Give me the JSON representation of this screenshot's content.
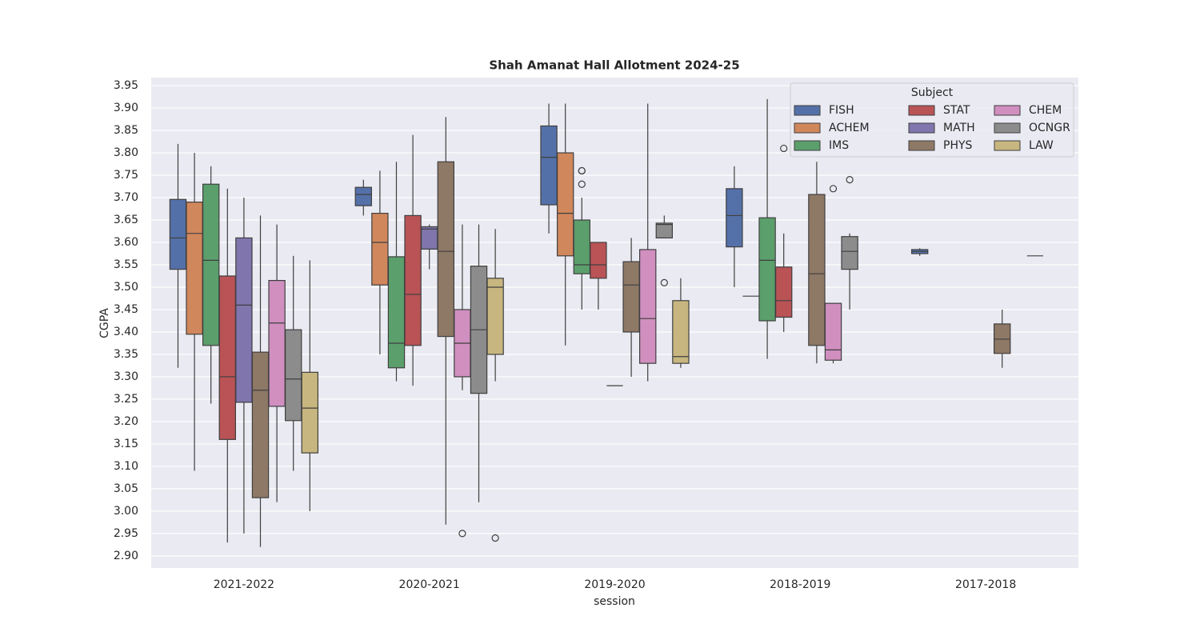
{
  "chart_data": {
    "type": "box",
    "title": "Shah Amanat Hall Allotment 2024-25",
    "x_label": "session",
    "y_label": "CGPA",
    "legend_title": "Subject",
    "legend": "upper right",
    "grid": true,
    "categories": [
      "2021-2022",
      "2020-2021",
      "2019-2020",
      "2018-2019",
      "2017-2018"
    ],
    "ylim": [
      2.873,
      3.968
    ],
    "yticks": [
      {
        "value": 2.9,
        "label": "2.90"
      },
      2.95,
      {
        "value": 3,
        "label": "3.00"
      },
      3.05,
      {
        "value": 3.1,
        "label": "3.10"
      },
      3.15,
      {
        "value": 3.2,
        "label": "3.20"
      },
      3.25,
      {
        "value": 3.3,
        "label": "3.30"
      },
      3.35,
      {
        "value": 3.4,
        "label": "3.40"
      },
      3.45,
      {
        "value": 3.5,
        "label": "3.50"
      },
      3.55,
      {
        "value": 3.6,
        "label": "3.60"
      },
      3.65,
      {
        "value": 3.7,
        "label": "3.70"
      },
      3.75,
      {
        "value": 3.8,
        "label": "3.80"
      },
      3.85,
      {
        "value": 3.9,
        "label": "3.90"
      },
      3.95
    ],
    "series": [
      {
        "name": "FISH",
        "color": "#5470a8",
        "boxes": [
          {
            "whislo": 3.32,
            "q1": 3.54,
            "med": 3.61,
            "q3": 3.696,
            "whishi": 3.82
          },
          {
            "whislo": 3.66,
            "q1": 3.682,
            "med": 3.707,
            "q3": 3.723,
            "whishi": 3.74
          },
          {
            "whislo": 3.62,
            "q1": 3.684,
            "med": 3.79,
            "q3": 3.86,
            "whishi": 3.91
          },
          {
            "whislo": 3.5,
            "q1": 3.59,
            "med": 3.66,
            "q3": 3.72,
            "whishi": 3.77
          },
          {
            "whislo": 3.57,
            "q1": 3.575,
            "med": 3.58,
            "q3": 3.584,
            "whishi": 3.587
          }
        ]
      },
      {
        "name": "ACHEM",
        "color": "#d0875c",
        "boxes": [
          {
            "whislo": 3.09,
            "q1": 3.395,
            "med": 3.62,
            "q3": 3.69,
            "whishi": 3.8
          },
          {
            "whislo": 3.35,
            "q1": 3.505,
            "med": 3.6,
            "q3": 3.665,
            "whishi": 3.76
          },
          {
            "whislo": 3.37,
            "q1": 3.57,
            "med": 3.665,
            "q3": 3.8,
            "whishi": 3.91
          },
          {
            "whislo": 3.48,
            "q1": 3.48,
            "med": 3.48,
            "q3": 3.48,
            "whishi": 3.48
          },
          null
        ]
      },
      {
        "name": "IMS",
        "color": "#5b9f6c",
        "boxes": [
          {
            "whislo": 3.24,
            "q1": 3.37,
            "med": 3.56,
            "q3": 3.73,
            "whishi": 3.77
          },
          {
            "whislo": 3.29,
            "q1": 3.32,
            "med": 3.375,
            "q3": 3.568,
            "whishi": 3.78
          },
          {
            "whislo": 3.45,
            "q1": 3.53,
            "med": 3.55,
            "q3": 3.65,
            "whishi": 3.7,
            "fliers": [
              3.76,
              3.76,
              3.73
            ]
          },
          {
            "whislo": 3.34,
            "q1": 3.425,
            "med": 3.56,
            "q3": 3.655,
            "whishi": 3.92
          },
          null
        ]
      },
      {
        "name": "STAT",
        "color": "#b95356",
        "boxes": [
          {
            "whislo": 2.93,
            "q1": 3.16,
            "med": 3.3,
            "q3": 3.525,
            "whishi": 3.72
          },
          {
            "whislo": 3.28,
            "q1": 3.37,
            "med": 3.484,
            "q3": 3.66,
            "whishi": 3.84
          },
          {
            "whislo": 3.45,
            "q1": 3.52,
            "med": 3.55,
            "q3": 3.6,
            "whishi": 3.6
          },
          {
            "whislo": 3.4,
            "q1": 3.433,
            "med": 3.47,
            "q3": 3.545,
            "whishi": 3.62,
            "fliers": [
              3.81
            ]
          },
          null
        ]
      },
      {
        "name": "MATH",
        "color": "#8175ad",
        "boxes": [
          {
            "whislo": 2.95,
            "q1": 3.243,
            "med": 3.46,
            "q3": 3.61,
            "whishi": 3.7
          },
          {
            "whislo": 3.54,
            "q1": 3.585,
            "med": 3.63,
            "q3": 3.635,
            "whishi": 3.64
          },
          {
            "whislo": 3.28,
            "q1": 3.28,
            "med": 3.28,
            "q3": 3.28,
            "whishi": 3.28
          },
          null,
          null
        ]
      },
      {
        "name": "PHYS",
        "color": "#8e7866",
        "boxes": [
          {
            "whislo": 2.92,
            "q1": 3.03,
            "med": 3.27,
            "q3": 3.355,
            "whishi": 3.66
          },
          {
            "whislo": 2.97,
            "q1": 3.39,
            "med": 3.58,
            "q3": 3.78,
            "whishi": 3.88
          },
          {
            "whislo": 3.3,
            "q1": 3.4,
            "med": 3.505,
            "q3": 3.557,
            "whishi": 3.61
          },
          {
            "whislo": 3.33,
            "q1": 3.37,
            "med": 3.53,
            "q3": 3.707,
            "whishi": 3.78
          },
          {
            "whislo": 3.32,
            "q1": 3.352,
            "med": 3.384,
            "q3": 3.418,
            "whishi": 3.45
          }
        ]
      },
      {
        "name": "CHEM",
        "color": "#d08fbf",
        "boxes": [
          {
            "whislo": 3.02,
            "q1": 3.234,
            "med": 3.42,
            "q3": 3.515,
            "whishi": 3.64
          },
          {
            "whislo": 3.27,
            "q1": 3.3,
            "med": 3.375,
            "q3": 3.45,
            "whishi": 3.64,
            "fliers": [
              2.95
            ]
          },
          {
            "whislo": 3.29,
            "q1": 3.33,
            "med": 3.43,
            "q3": 3.584,
            "whishi": 3.91
          },
          {
            "whislo": 3.33,
            "q1": 3.337,
            "med": 3.36,
            "q3": 3.464,
            "whishi": 3.464,
            "fliers": [
              3.72
            ]
          },
          null
        ]
      },
      {
        "name": "OCNGR",
        "color": "#8c8c8c",
        "boxes": [
          {
            "whislo": 3.09,
            "q1": 3.202,
            "med": 3.295,
            "q3": 3.405,
            "whishi": 3.57
          },
          {
            "whislo": 3.02,
            "q1": 3.263,
            "med": 3.405,
            "q3": 3.547,
            "whishi": 3.64
          },
          {
            "whislo": 3.61,
            "q1": 3.61,
            "med": 3.64,
            "q3": 3.643,
            "whishi": 3.66,
            "fliers": [
              3.51
            ]
          },
          {
            "whislo": 3.45,
            "q1": 3.54,
            "med": 3.58,
            "q3": 3.613,
            "whishi": 3.62,
            "fliers": [
              3.74
            ]
          },
          {
            "whislo": 3.57,
            "q1": 3.57,
            "med": 3.57,
            "q3": 3.57,
            "whishi": 3.57
          }
        ]
      },
      {
        "name": "LAW",
        "color": "#c7b67f",
        "boxes": [
          {
            "whislo": 3.0,
            "q1": 3.13,
            "med": 3.23,
            "q3": 3.31,
            "whishi": 3.56
          },
          {
            "whislo": 3.29,
            "q1": 3.35,
            "med": 3.5,
            "q3": 3.52,
            "whishi": 3.63,
            "fliers": [
              2.94
            ]
          },
          {
            "whislo": 3.32,
            "q1": 3.33,
            "med": 3.345,
            "q3": 3.47,
            "whishi": 3.52
          },
          null,
          null
        ]
      }
    ]
  }
}
